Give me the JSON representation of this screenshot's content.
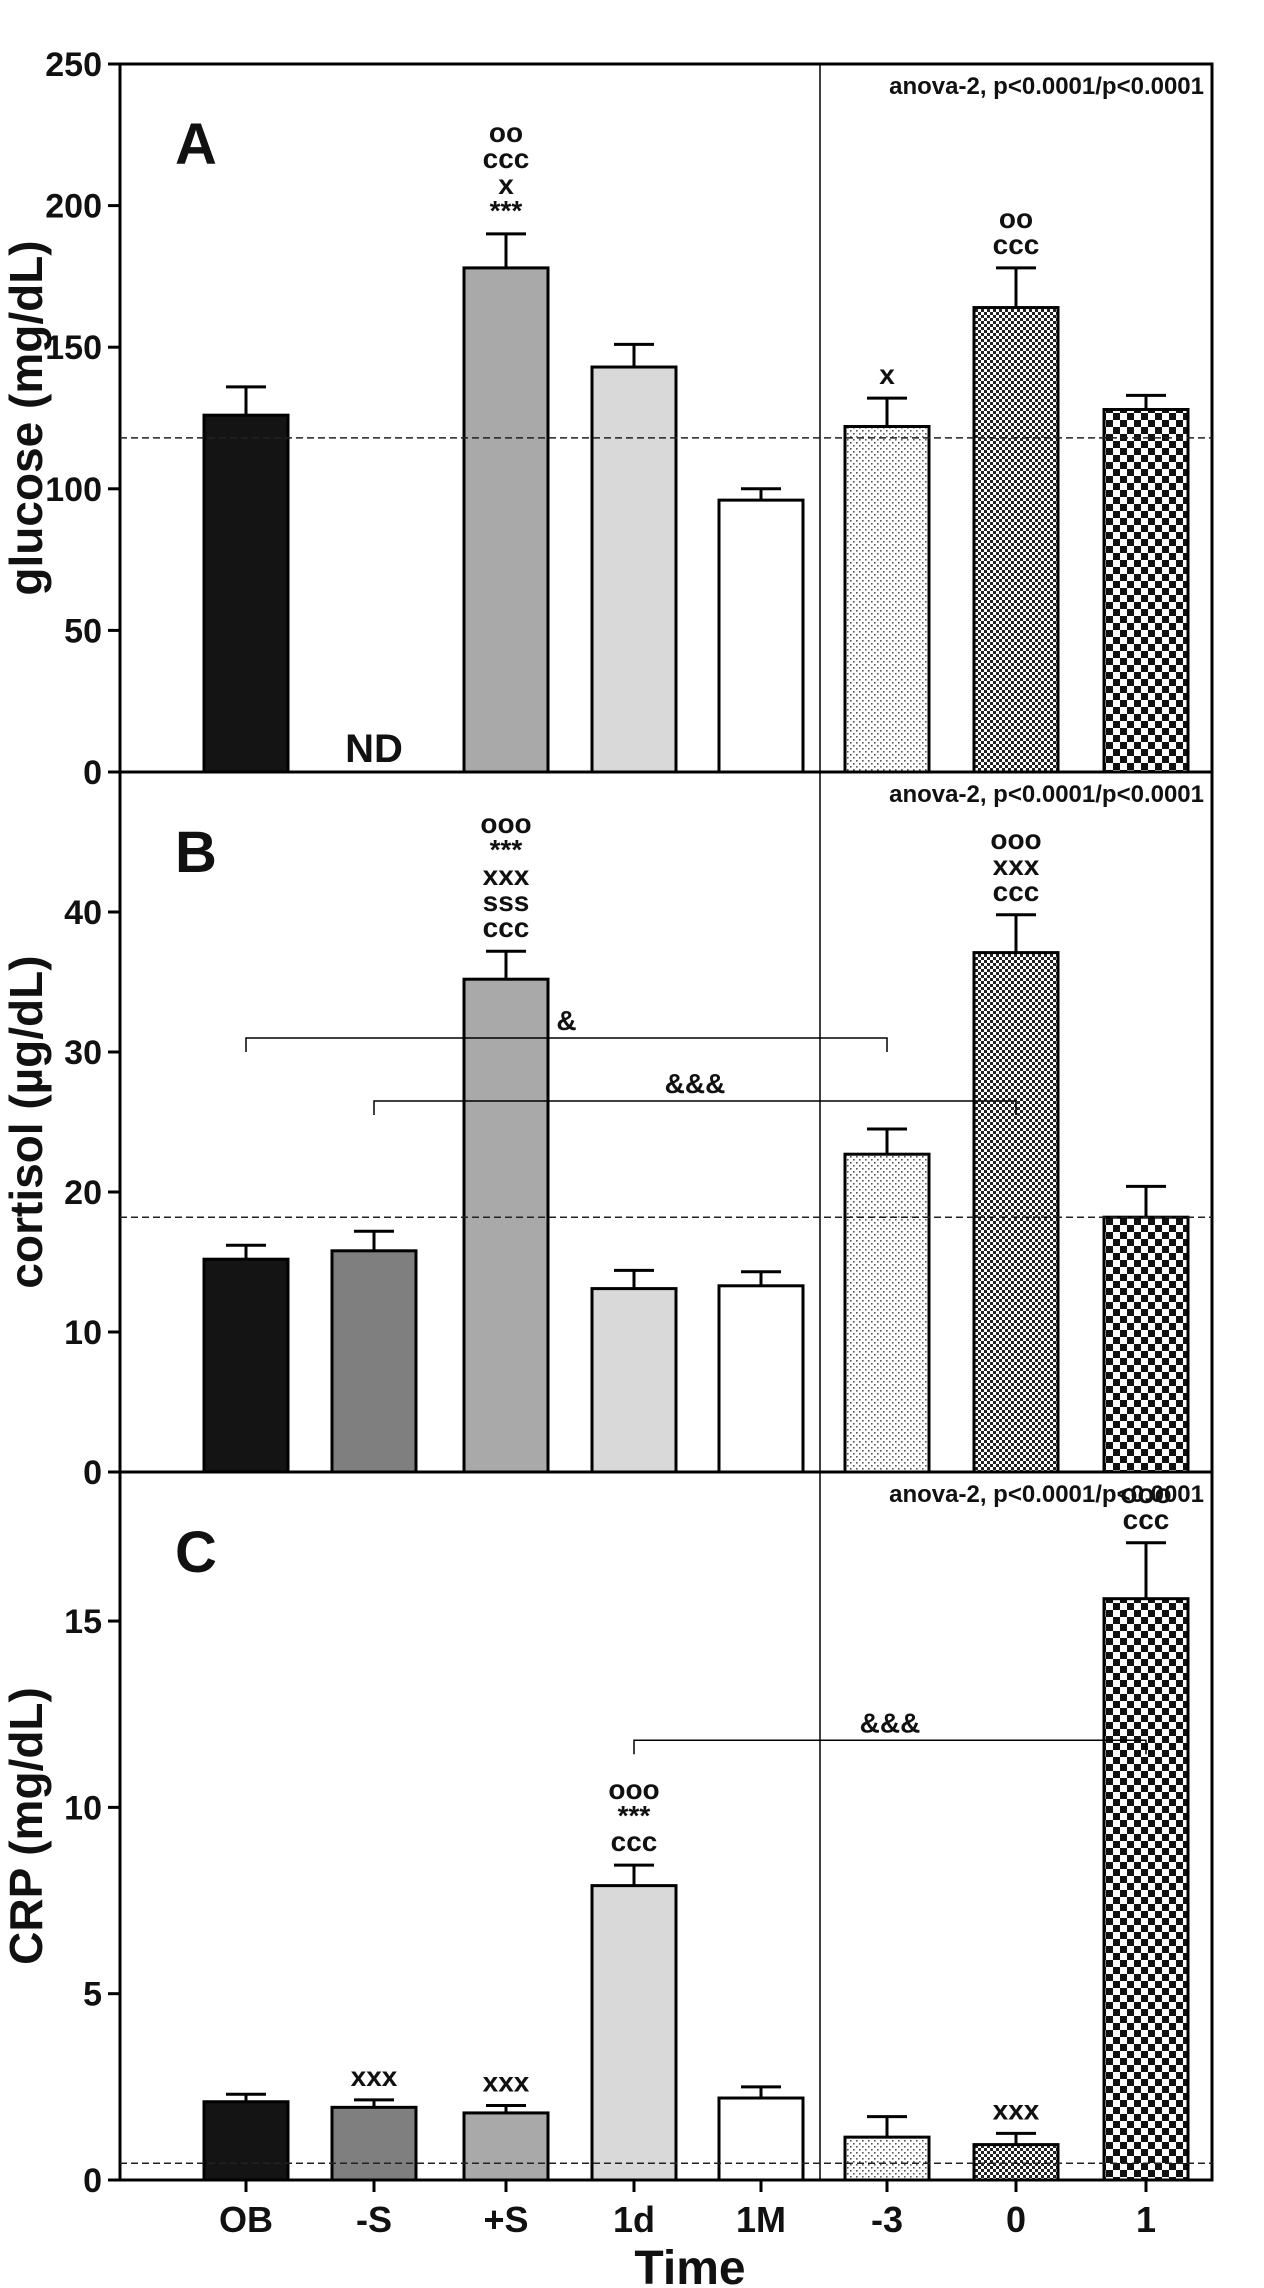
{
  "chart_data": [
    {
      "type": "bar",
      "panel": "A",
      "ylabel": "glucose (mg/dL)",
      "ylim": [
        0,
        250
      ],
      "yticks": [
        0,
        50,
        100,
        150,
        200,
        250
      ],
      "anova": "anova-2, p<0.0001/p<0.0001",
      "reference_line": 118,
      "values": [
        126,
        null,
        178,
        143,
        96,
        122,
        164,
        128
      ],
      "errors": [
        10,
        null,
        12,
        8,
        4,
        10,
        14,
        5
      ],
      "value_labels": [
        "",
        "ND",
        "",
        "",
        "",
        "",
        "",
        ""
      ],
      "significance": [
        [],
        [],
        [
          "oo",
          "ccc",
          "x",
          "***"
        ],
        [],
        [],
        [
          "x"
        ],
        [
          "oo",
          "ccc"
        ],
        []
      ],
      "brackets": []
    },
    {
      "type": "bar",
      "panel": "B",
      "ylabel": "cortisol (µg/dL)",
      "ylim": [
        0,
        50
      ],
      "yticks": [
        0,
        10,
        20,
        30,
        40
      ],
      "anova": "anova-2, p<0.0001/p<0.0001",
      "reference_line": 18.2,
      "values": [
        15.2,
        15.8,
        35.2,
        13.1,
        13.3,
        22.7,
        37.1,
        18.2
      ],
      "errors": [
        1.0,
        1.4,
        2.0,
        1.3,
        1.0,
        1.8,
        2.7,
        2.2
      ],
      "value_labels": [
        "",
        "",
        "",
        "",
        "",
        "",
        "",
        ""
      ],
      "significance": [
        [],
        [],
        [
          "ooo",
          "***",
          "xxx",
          "sss",
          "ccc"
        ],
        [],
        [],
        [],
        [
          "ooo",
          "xxx",
          "ccc"
        ],
        []
      ],
      "brackets": [
        {
          "from": 0,
          "to": 5,
          "y": 31,
          "label": "&"
        },
        {
          "from": 1,
          "to": 6,
          "y": 26.5,
          "label": "&&&"
        }
      ]
    },
    {
      "type": "bar",
      "panel": "C",
      "ylabel": "CRP (mg/dL)",
      "ylim": [
        0,
        19
      ],
      "yticks": [
        0,
        5,
        10,
        15
      ],
      "anova": "anova-2, p<0.0001/p<0.0001",
      "reference_line": 0.45,
      "values": [
        2.1,
        1.95,
        1.8,
        7.9,
        2.2,
        1.15,
        0.95,
        15.6
      ],
      "errors": [
        0.2,
        0.2,
        0.2,
        0.55,
        0.3,
        0.55,
        0.3,
        1.5
      ],
      "value_labels": [
        "",
        "",
        "",
        "",
        "",
        "",
        "",
        ""
      ],
      "significance": [
        [],
        [
          "xxx"
        ],
        [
          "xxx"
        ],
        [
          "ooo",
          "***",
          "ccc"
        ],
        [],
        [],
        [
          "xxx"
        ],
        [
          "ooo",
          "ccc"
        ]
      ],
      "brackets": [
        {
          "from": 3,
          "to": 7,
          "y": 11.8,
          "label": "&&&"
        }
      ]
    }
  ],
  "categories": [
    "OB",
    "-S",
    "+S",
    "1d",
    "1M",
    "-3",
    "0",
    "1"
  ],
  "xlabel": "Time",
  "bar_fills": [
    "black",
    "dark-gray",
    "medium-gray",
    "light-gray",
    "white",
    "fine-dots",
    "fine-checker",
    "coarse-checker"
  ],
  "colors": {
    "black": "#141414",
    "dark_gray": "#7f7f7f",
    "medium_gray": "#a9a9a9",
    "light_gray": "#d9d9d9",
    "white": "#ffffff",
    "axis": "#000000"
  }
}
